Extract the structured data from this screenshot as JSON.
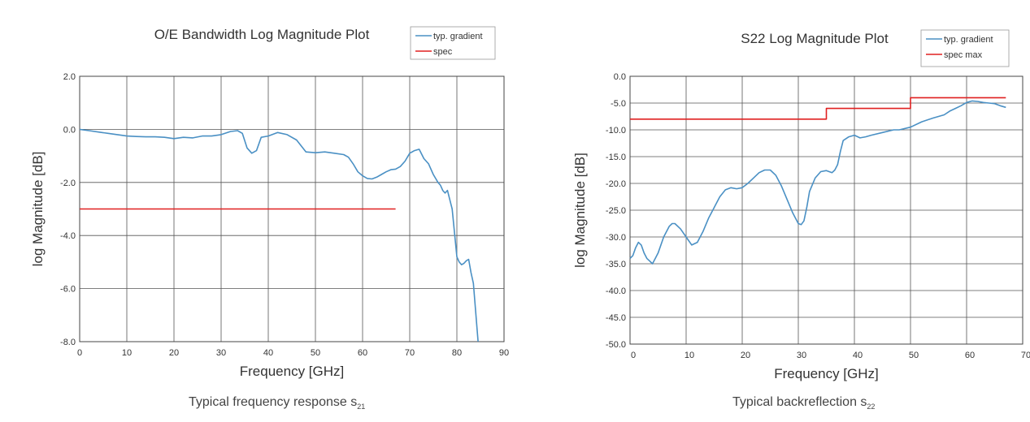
{
  "chart_data": [
    {
      "type": "line",
      "title": "O/E Bandwidth Log Magnitude Plot",
      "xlabel": "Frequency [GHz]",
      "ylabel": "log Magnitude [dB]",
      "xlim": [
        0,
        90
      ],
      "ylim": [
        -8,
        2
      ],
      "x_ticks": [
        "0",
        "10",
        "20",
        "30",
        "40",
        "50",
        "60",
        "70",
        "80",
        "90"
      ],
      "y_ticks": [
        "2.0",
        "0.0",
        "-2.0",
        "-4.0",
        "-6.0",
        "-8.0"
      ],
      "grid": true,
      "legend_position": "top-right",
      "caption_main": "Typical frequency response s",
      "caption_sub": "21",
      "series": [
        {
          "name": "typ. gradient",
          "color": "#4a90c4",
          "x": [
            0,
            2,
            4,
            6,
            8,
            10,
            12,
            14,
            16,
            18,
            20,
            22,
            24,
            26,
            28,
            30,
            32,
            33.5,
            34.5,
            35.5,
            36.5,
            37.5,
            38.5,
            40,
            42,
            44,
            46,
            48,
            50,
            52,
            54,
            56,
            57,
            58,
            59,
            60,
            61,
            62,
            63,
            64,
            65,
            66,
            67,
            68,
            69,
            70,
            71,
            72,
            73,
            74,
            75,
            76,
            76.5,
            77,
            77.5,
            78,
            79,
            80,
            80.5,
            81,
            81.5,
            82,
            82.5,
            83,
            83.5,
            84,
            84.5
          ],
          "y": [
            0,
            -0.05,
            -0.1,
            -0.15,
            -0.2,
            -0.25,
            -0.27,
            -0.28,
            -0.28,
            -0.3,
            -0.35,
            -0.3,
            -0.32,
            -0.25,
            -0.25,
            -0.2,
            -0.08,
            -0.05,
            -0.15,
            -0.7,
            -0.9,
            -0.8,
            -0.3,
            -0.25,
            -0.12,
            -0.2,
            -0.4,
            -0.85,
            -0.88,
            -0.85,
            -0.9,
            -0.95,
            -1.05,
            -1.3,
            -1.6,
            -1.75,
            -1.85,
            -1.87,
            -1.8,
            -1.7,
            -1.6,
            -1.52,
            -1.5,
            -1.4,
            -1.2,
            -0.9,
            -0.8,
            -0.75,
            -1.1,
            -1.3,
            -1.7,
            -2.0,
            -2.1,
            -2.3,
            -2.4,
            -2.3,
            -3.0,
            -4.8,
            -5.0,
            -5.1,
            -5.05,
            -4.95,
            -4.9,
            -5.4,
            -5.8,
            -6.9,
            -8.0
          ]
        },
        {
          "name": "spec",
          "color": "#e02020",
          "x": [
            0,
            67
          ],
          "y": [
            -3,
            -3
          ]
        }
      ]
    },
    {
      "type": "line",
      "title": "S22 Log Magnitude Plot",
      "xlabel": "Frequency [GHz]",
      "ylabel": "log Magnitude [dB]",
      "xlim": [
        0,
        70
      ],
      "ylim": [
        -50,
        0
      ],
      "x_ticks": [
        "0",
        "10",
        "20",
        "30",
        "40",
        "50",
        "60",
        "70"
      ],
      "y_ticks": [
        "0.0",
        "-5.0",
        "-10.0",
        "-15.0",
        "-20.0",
        "-25.0",
        "-30.0",
        "-35.0",
        "-40.0",
        "-45.0",
        "-50.0"
      ],
      "grid": true,
      "legend_position": "top-right",
      "caption_main": "Typical backreflection s",
      "caption_sub": "22",
      "series": [
        {
          "name": "typ. gradient",
          "color": "#4a90c4",
          "x": [
            0,
            0.5,
            1,
            1.5,
            2,
            2.5,
            3,
            3.5,
            4,
            4.5,
            5,
            6,
            7,
            7.5,
            8,
            9,
            10,
            11,
            12,
            13,
            14,
            15,
            16,
            17,
            18,
            19,
            20,
            21,
            22,
            23,
            24,
            25,
            26,
            27,
            28,
            29,
            30,
            30.5,
            31,
            31.5,
            32,
            33,
            34,
            35,
            36,
            36.5,
            37,
            37.5,
            38,
            39,
            40,
            41,
            42,
            43,
            45,
            47,
            48,
            50,
            52,
            54,
            56,
            57,
            58,
            59,
            60,
            61,
            62,
            63,
            64,
            65,
            66,
            67
          ],
          "y": [
            -34,
            -33.5,
            -32,
            -31,
            -31.5,
            -33,
            -34,
            -34.5,
            -35,
            -34,
            -33,
            -30,
            -28,
            -27.5,
            -27.5,
            -28.5,
            -30,
            -31.5,
            -31,
            -29,
            -26.5,
            -24.5,
            -22.5,
            -21.2,
            -20.8,
            -21,
            -20.8,
            -20,
            -19,
            -18,
            -17.5,
            -17.5,
            -18.5,
            -20.5,
            -23,
            -25.5,
            -27.5,
            -27.7,
            -27,
            -24.5,
            -21.5,
            -19,
            -17.8,
            -17.6,
            -18,
            -17.5,
            -16.5,
            -14,
            -12,
            -11.3,
            -11,
            -11.5,
            -11.3,
            -11,
            -10.5,
            -10,
            -10,
            -9.5,
            -8.5,
            -7.8,
            -7.2,
            -6.5,
            -6,
            -5.5,
            -4.9,
            -4.6,
            -4.7,
            -4.9,
            -5,
            -5.1,
            -5.5,
            -5.8
          ]
        },
        {
          "name": "spec max",
          "color": "#e02020",
          "x": [
            0,
            35,
            35,
            50,
            50,
            67
          ],
          "y": [
            -8,
            -8,
            -6,
            -6,
            -4,
            -4
          ]
        }
      ]
    }
  ]
}
